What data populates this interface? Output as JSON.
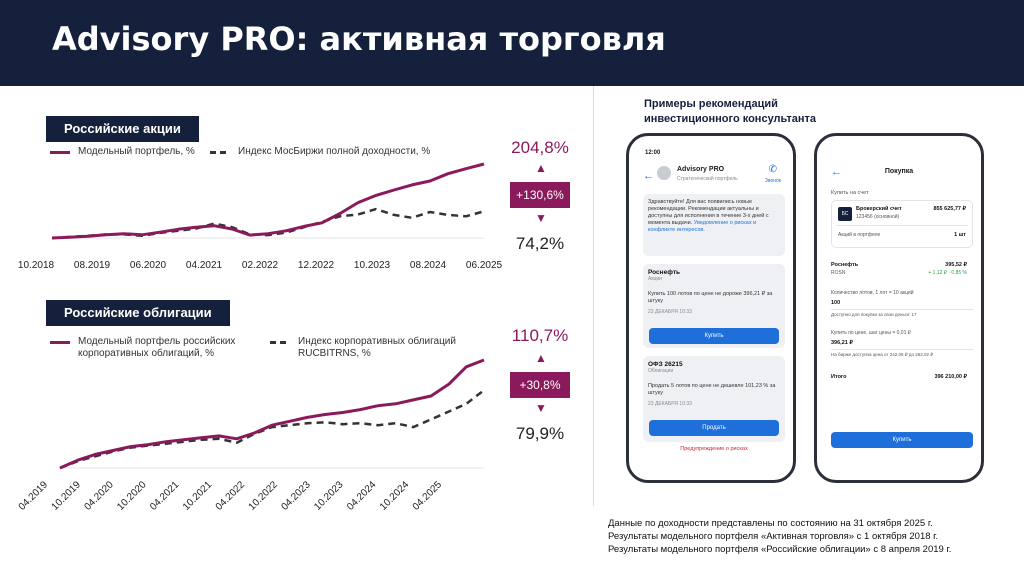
{
  "header": {
    "title_a": "Advisory PRO",
    "title_b": ": активная торговля"
  },
  "stocks": {
    "badge": "Российские акции",
    "legend_portfolio": "Модельный портфель, %",
    "legend_index": "Индекс МосБиржи полной доходности, %",
    "top_value": "204,8%",
    "diff": "+130,6%",
    "bottom_value": "74,2%"
  },
  "bonds": {
    "badge": "Российские облигации",
    "legend_portfolio": "Модельный портфель российских корпоративных облигаций, %",
    "legend_index": "Индекс корпоративных облигаций RUCBITRNS, %",
    "top_value": "110,7%",
    "diff": "+30,8%",
    "bottom_value": "79,9%"
  },
  "chart_data": [
    {
      "type": "line",
      "title": "Российские акции",
      "x_ticks": [
        "10.2018",
        "08.2019",
        "06.2020",
        "04.2021",
        "02.2022",
        "12.2022",
        "10.2023",
        "08.2024",
        "06.2025"
      ],
      "series": [
        {
          "name": "Модельный портфель, %",
          "style": "solid",
          "color": "#8b1a5c",
          "values": [
            0,
            2,
            5,
            9,
            12,
            9,
            16,
            24,
            30,
            34,
            25,
            8,
            12,
            20,
            32,
            42,
            68,
            98,
            118,
            133,
            147,
            158,
            178,
            192,
            205
          ]
        },
        {
          "name": "Индекс МосБиржи полной доходности, %",
          "style": "dashed",
          "color": "#333333",
          "values": [
            0,
            3,
            6,
            10,
            10,
            6,
            14,
            20,
            26,
            40,
            30,
            10,
            8,
            15,
            30,
            45,
            60,
            65,
            80,
            64,
            56,
            72,
            64,
            60,
            74
          ]
        }
      ]
    },
    {
      "type": "line",
      "title": "Российские облигации",
      "x_ticks": [
        "04.2019",
        "10.2019",
        "04.2020",
        "10.2020",
        "04.2021",
        "10.2021",
        "04.2022",
        "10.2022",
        "04.2023",
        "10.2023",
        "04.2024",
        "10.2024",
        "04.2025"
      ],
      "series": [
        {
          "name": "Модельный портфель российских корпоративных облигаций, %",
          "style": "solid",
          "color": "#8b1a5c",
          "values": [
            0,
            8,
            14,
            18,
            22,
            24,
            27,
            29,
            31,
            33,
            30,
            36,
            44,
            48,
            52,
            55,
            57,
            60,
            64,
            66,
            70,
            74,
            86,
            104,
            111
          ]
        },
        {
          "name": "Индекс корпоративных облигаций RUCBITRNS, %",
          "style": "dashed",
          "color": "#333333",
          "values": [
            0,
            7,
            12,
            17,
            21,
            23,
            25,
            27,
            29,
            30,
            26,
            35,
            42,
            44,
            46,
            47,
            45,
            46,
            44,
            46,
            42,
            50,
            58,
            66,
            80
          ]
        }
      ]
    }
  ],
  "rec": {
    "title_line1": "Примеры рекомендаций",
    "title_line2": "инвестиционного консультанта"
  },
  "phone1": {
    "time": "12:00",
    "title": "Advisory PRO",
    "subtitle": "Стратегический портфель",
    "call": "Звонок",
    "message": "Здравствуйте! Для вас появились новые рекомендации. Рекомендации актуальны и доступны для исполнения в течение 3-х дней с момента выдачи.",
    "message_link": "Уведомление о рисках и конфликте интересов.",
    "card1_name": "Роснефть",
    "card1_type": "Акции",
    "card1_text": "Купить 100 лотов по цене не дороже 396,21 ₽ за штуку",
    "card1_date": "23 ДЕКАБРЯ 10:33",
    "card1_button": "Купить",
    "card2_name": "ОФЗ 26215",
    "card2_type": "Облигации",
    "card2_text": "Продать 5 лотов по цене не дешевле 101,23 % за штуку",
    "card2_date": "23 ДЕКАБРЯ 10:33",
    "card2_button": "Продать",
    "warning": "Предупреждение о рисках"
  },
  "phone2": {
    "title": "Покупка",
    "account_label": "Купить на счет",
    "account_name": "Брокерский счет",
    "account_number": "123456 (основной)",
    "account_value": "855 625,77 ₽",
    "account_badge": "БС",
    "shares_label": "Акций в портфеле",
    "shares_value": "1 шт",
    "stock_name": "Роснефть",
    "stock_ticker": "ROSN",
    "stock_price": "395,52 ₽",
    "stock_change": "+ 1,12 ₽ · 0,85 %",
    "qty_label": "Количество лотов, 1 лот = 10 акций",
    "qty_value": "100",
    "qty_hint": "Доступно для покупки за свои деньги: 17",
    "price_label": "Купить по цене, шаг цены = 0,01 ₽",
    "price_value": "396,21 ₽",
    "price_hint": "На бирже доступна цена от 242,05 ₽ до 262,02 ₽",
    "total_label": "Итого",
    "total_value": "396 210,00 ₽",
    "button": "Купить"
  },
  "footnote": {
    "line1": "Данные по доходности представлены по состоянию на 31 октября 2025 г.",
    "line2": "Результаты модельного портфеля «Активная торговля» с 1 октября 2018 г.",
    "line3": "Результаты модельного портфеля «Российские облигации» с 8 апреля 2019 г."
  },
  "colors": {
    "navy": "#14203c",
    "accent": "#8b1a5c",
    "index": "#333333",
    "blue": "#1e6fd9"
  }
}
